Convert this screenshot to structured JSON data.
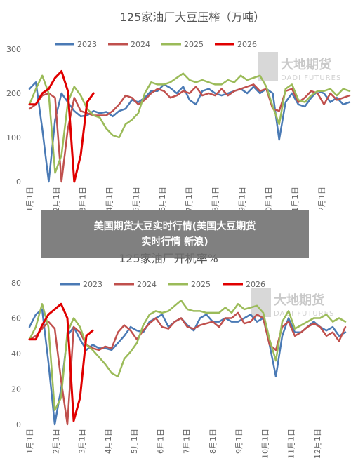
{
  "watermark": {
    "name": "大地期货",
    "sub": "DADI FUTURES"
  },
  "banner": {
    "line1": "美国期货大豆实时行情(美国大豆期货",
    "line2": "实时行情 新浪)"
  },
  "colors": {
    "2023": "#4a7ab5",
    "2024": "#c0504d",
    "2025": "#9bbb59",
    "2026": "#e00000"
  },
  "chart_data": [
    {
      "type": "line",
      "title": "125家油厂大豆压榨（万吨）",
      "ylim": [
        0,
        300
      ],
      "yticks": [
        0,
        100,
        200,
        300
      ],
      "x_labels": [
        "1月1日",
        "2月1日",
        "3月1日",
        "4月1日",
        "5月1日",
        "6月1日",
        "7月1日",
        "8月1日",
        "9月1日",
        "10月1日",
        "11月1日",
        "12月1日"
      ],
      "legend": "top",
      "grid": false,
      "series": [
        {
          "name": "2023",
          "values": [
            210,
            225,
            120,
            0,
            140,
            200,
            180,
            160,
            148,
            150,
            160,
            155,
            158,
            148,
            160,
            165,
            185,
            180,
            190,
            205,
            205,
            220,
            212,
            200,
            215,
            185,
            175,
            205,
            210,
            200,
            195,
            200,
            205,
            210,
            200,
            215,
            200,
            210,
            200,
            95,
            180,
            200,
            175,
            170,
            190,
            205,
            200,
            180,
            190,
            175,
            180
          ]
        },
        {
          "name": "2024",
          "values": [
            165,
            175,
            195,
            200,
            190,
            0,
            120,
            190,
            160,
            155,
            150,
            150,
            150,
            160,
            175,
            195,
            190,
            175,
            185,
            200,
            210,
            205,
            190,
            195,
            205,
            200,
            215,
            195,
            200,
            195,
            210,
            195,
            205,
            210,
            215,
            220,
            205,
            210,
            165,
            160,
            205,
            210,
            180,
            190,
            205,
            200,
            175,
            200,
            185,
            190,
            195
          ]
        },
        {
          "name": "2025",
          "values": [
            175,
            210,
            240,
            200,
            20,
            60,
            180,
            215,
            195,
            165,
            150,
            145,
            120,
            105,
            100,
            130,
            140,
            155,
            200,
            225,
            220,
            220,
            225,
            235,
            245,
            230,
            225,
            230,
            225,
            220,
            220,
            230,
            225,
            240,
            230,
            235,
            240,
            215,
            170,
            130,
            210,
            220,
            185,
            180,
            195,
            205,
            205,
            210,
            195,
            210,
            205
          ]
        },
        {
          "name": "2026",
          "values": [
            175,
            175,
            200,
            210,
            235,
            250,
            205,
            0,
            60,
            180,
            200
          ]
        }
      ]
    },
    {
      "type": "line",
      "title": "125家油厂开机率%",
      "ylim": [
        0,
        80
      ],
      "yticks": [
        0,
        20,
        40,
        60,
        80
      ],
      "x_labels": [
        "1月1日",
        "2月1日",
        "3月1日",
        "4月1日",
        "5月1日",
        "6月1日",
        "7月1日",
        "8月1日",
        "9月1日",
        "10月1日",
        "11月1日",
        "12月1日"
      ],
      "legend": "top",
      "grid": false,
      "series": [
        {
          "name": "2023",
          "values": [
            55,
            62,
            65,
            35,
            0,
            20,
            50,
            55,
            48,
            42,
            45,
            43,
            43,
            42,
            46,
            50,
            55,
            53,
            52,
            58,
            60,
            62,
            55,
            58,
            60,
            56,
            53,
            60,
            62,
            58,
            58,
            60,
            58,
            58,
            60,
            62,
            58,
            60,
            45,
            27,
            50,
            60,
            52,
            52,
            55,
            58,
            55,
            53,
            55,
            50,
            52
          ]
        },
        {
          "name": "2024",
          "values": [
            48,
            50,
            54,
            58,
            54,
            25,
            0,
            55,
            52,
            45,
            43,
            42,
            44,
            43,
            52,
            56,
            53,
            48,
            53,
            57,
            60,
            55,
            54,
            58,
            60,
            55,
            54,
            56,
            57,
            58,
            55,
            60,
            60,
            63,
            57,
            58,
            62,
            60,
            45,
            42,
            55,
            58,
            50,
            52,
            55,
            57,
            55,
            50,
            52,
            47,
            55
          ]
        },
        {
          "name": "2025",
          "values": [
            48,
            55,
            68,
            55,
            8,
            15,
            52,
            60,
            55,
            45,
            42,
            38,
            34,
            29,
            27,
            37,
            41,
            46,
            56,
            62,
            64,
            63,
            64,
            67,
            70,
            65,
            64,
            64,
            63,
            63,
            63,
            66,
            63,
            68,
            65,
            66,
            67,
            63,
            48,
            36,
            58,
            64,
            54,
            56,
            58,
            60,
            60,
            62,
            58,
            60,
            58
          ]
        },
        {
          "name": "2026",
          "values": [
            48,
            48,
            56,
            62,
            65,
            68,
            60,
            2,
            15,
            50,
            53
          ]
        }
      ]
    }
  ]
}
